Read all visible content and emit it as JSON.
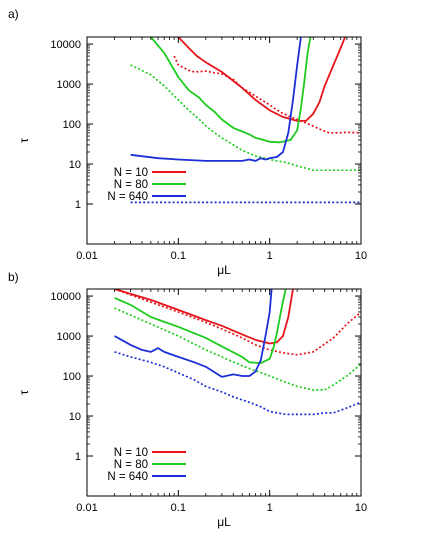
{
  "chart_data": [
    {
      "panel_label": "a)",
      "type": "line",
      "xlabel": "μL",
      "ylabel": "τ",
      "xscale": "log",
      "yscale": "log",
      "xlim": [
        0.01,
        10
      ],
      "ylim": [
        0.1,
        15000
      ],
      "xticks": [
        "0.01",
        "0.1",
        "1",
        "10"
      ],
      "yticks": [
        "1",
        "10",
        "100",
        "1000",
        "10000"
      ],
      "legend_position": "lower-left",
      "series": [
        {
          "name": "N = 10",
          "color": "#e8141b",
          "style": "solid",
          "points": [
            [
              0.1,
              15000
            ],
            [
              0.13,
              8000
            ],
            [
              0.16,
              5000
            ],
            [
              0.2,
              3500
            ],
            [
              0.3,
              2000
            ],
            [
              0.5,
              800
            ],
            [
              0.7,
              400
            ],
            [
              1,
              220
            ],
            [
              1.4,
              150
            ],
            [
              2,
              120
            ],
            [
              2.5,
              120
            ],
            [
              3,
              180
            ],
            [
              3.5,
              350
            ],
            [
              4,
              900
            ],
            [
              5,
              3000
            ],
            [
              6,
              8000
            ],
            [
              6.7,
              15000
            ]
          ]
        },
        {
          "name": "N = 10",
          "color": "#e8141b",
          "style": "dotted",
          "points": [
            [
              0.09,
              5000
            ],
            [
              0.1,
              3000
            ],
            [
              0.13,
              2200
            ],
            [
              0.15,
              2000
            ],
            [
              0.2,
              2100
            ],
            [
              0.25,
              1900
            ],
            [
              0.3,
              1800
            ],
            [
              0.4,
              1300
            ],
            [
              0.5,
              800
            ],
            [
              0.7,
              500
            ],
            [
              1,
              300
            ],
            [
              1.3,
              200
            ],
            [
              1.7,
              150
            ],
            [
              2.2,
              120
            ],
            [
              2.8,
              95
            ],
            [
              3.5,
              75
            ],
            [
              4.5,
              60
            ],
            [
              5.5,
              60
            ],
            [
              7,
              62
            ],
            [
              10,
              60
            ]
          ]
        },
        {
          "name": "N = 80",
          "color": "#1dcc1d",
          "style": "solid",
          "points": [
            [
              0.05,
              15000
            ],
            [
              0.07,
              6000
            ],
            [
              0.1,
              1500
            ],
            [
              0.13,
              700
            ],
            [
              0.17,
              450
            ],
            [
              0.2,
              300
            ],
            [
              0.25,
              200
            ],
            [
              0.3,
              130
            ],
            [
              0.4,
              80
            ],
            [
              0.5,
              65
            ],
            [
              0.6,
              55
            ],
            [
              0.7,
              45
            ],
            [
              0.8,
              42
            ],
            [
              1,
              36
            ],
            [
              1.3,
              35
            ],
            [
              1.7,
              40
            ],
            [
              2,
              70
            ],
            [
              2.2,
              250
            ],
            [
              2.4,
              1200
            ],
            [
              2.6,
              6000
            ],
            [
              2.8,
              15000
            ]
          ]
        },
        {
          "name": "N = 80",
          "color": "#1dcc1d",
          "style": "dotted",
          "points": [
            [
              0.03,
              3000
            ],
            [
              0.05,
              1700
            ],
            [
              0.07,
              900
            ],
            [
              0.1,
              400
            ],
            [
              0.13,
              220
            ],
            [
              0.17,
              130
            ],
            [
              0.2,
              90
            ],
            [
              0.25,
              60
            ],
            [
              0.3,
              45
            ],
            [
              0.4,
              30
            ],
            [
              0.5,
              22
            ],
            [
              0.7,
              16
            ],
            [
              1,
              13
            ],
            [
              1.5,
              11
            ],
            [
              2,
              9
            ],
            [
              3,
              7
            ],
            [
              10,
              7
            ]
          ]
        },
        {
          "name": "N = 640",
          "color": "#1c2fd6",
          "style": "solid",
          "points": [
            [
              0.03,
              17
            ],
            [
              0.06,
              14
            ],
            [
              0.1,
              13
            ],
            [
              0.2,
              12
            ],
            [
              0.35,
              12
            ],
            [
              0.5,
              12
            ],
            [
              0.6,
              13
            ],
            [
              0.7,
              12
            ],
            [
              0.8,
              14
            ],
            [
              0.9,
              13
            ],
            [
              1,
              14
            ],
            [
              1.2,
              15
            ],
            [
              1.4,
              20
            ],
            [
              1.6,
              60
            ],
            [
              1.8,
              400
            ],
            [
              2,
              3000
            ],
            [
              2.2,
              15000
            ]
          ]
        },
        {
          "name": "N = 640",
          "color": "#1c2fd6",
          "style": "dotted",
          "points": [
            [
              0.03,
              1.1
            ],
            [
              0.1,
              1.1
            ],
            [
              1,
              1.1
            ],
            [
              10,
              1.1
            ]
          ]
        }
      ],
      "legend": [
        {
          "label": "N = 10",
          "color": "#e8141b"
        },
        {
          "label": "N = 80",
          "color": "#1dcc1d"
        },
        {
          "label": "N = 640",
          "color": "#1c2fd6"
        }
      ]
    },
    {
      "panel_label": "b)",
      "type": "line",
      "xlabel": "μL",
      "ylabel": "τ",
      "xscale": "log",
      "yscale": "log",
      "xlim": [
        0.01,
        10
      ],
      "ylim": [
        0.1,
        15000
      ],
      "xticks": [
        "0.01",
        "0.1",
        "1",
        "10"
      ],
      "yticks": [
        "1",
        "10",
        "100",
        "1000",
        "10000"
      ],
      "legend_position": "lower-left",
      "series": [
        {
          "name": "N = 10",
          "color": "#e8141b",
          "style": "solid",
          "points": [
            [
              0.02,
              15000
            ],
            [
              0.05,
              8000
            ],
            [
              0.1,
              4500
            ],
            [
              0.2,
              2500
            ],
            [
              0.3,
              1800
            ],
            [
              0.5,
              1100
            ],
            [
              0.7,
              800
            ],
            [
              1,
              650
            ],
            [
              1.2,
              700
            ],
            [
              1.4,
              1000
            ],
            [
              1.6,
              3000
            ],
            [
              1.8,
              15000
            ]
          ]
        },
        {
          "name": "N = 10",
          "color": "#e8141b",
          "style": "dotted",
          "points": [
            [
              0.02,
              15000
            ],
            [
              0.05,
              7000
            ],
            [
              0.1,
              4000
            ],
            [
              0.2,
              2200
            ],
            [
              0.3,
              1500
            ],
            [
              0.5,
              900
            ],
            [
              0.7,
              600
            ],
            [
              1,
              450
            ],
            [
              1.5,
              370
            ],
            [
              2,
              340
            ],
            [
              3,
              400
            ],
            [
              5,
              900
            ],
            [
              7,
              2000
            ],
            [
              10,
              4000
            ]
          ]
        },
        {
          "name": "N = 80",
          "color": "#1dcc1d",
          "style": "solid",
          "points": [
            [
              0.02,
              9000
            ],
            [
              0.03,
              6000
            ],
            [
              0.05,
              3000
            ],
            [
              0.1,
              1700
            ],
            [
              0.2,
              900
            ],
            [
              0.3,
              550
            ],
            [
              0.5,
              300
            ],
            [
              0.6,
              220
            ],
            [
              0.8,
              210
            ],
            [
              1,
              270
            ],
            [
              1.1,
              500
            ],
            [
              1.2,
              1200
            ],
            [
              1.35,
              5000
            ],
            [
              1.5,
              15000
            ]
          ]
        },
        {
          "name": "N = 80",
          "color": "#1dcc1d",
          "style": "dotted",
          "points": [
            [
              0.02,
              5000
            ],
            [
              0.05,
              2000
            ],
            [
              0.1,
              1000
            ],
            [
              0.2,
              450
            ],
            [
              0.3,
              300
            ],
            [
              0.5,
              180
            ],
            [
              1,
              100
            ],
            [
              1.5,
              70
            ],
            [
              2,
              55
            ],
            [
              3,
              45
            ],
            [
              4,
              45
            ],
            [
              5,
              60
            ],
            [
              7,
              100
            ],
            [
              10,
              200
            ]
          ]
        },
        {
          "name": "N = 640",
          "color": "#1c2fd6",
          "style": "solid",
          "points": [
            [
              0.02,
              1000
            ],
            [
              0.03,
              600
            ],
            [
              0.04,
              450
            ],
            [
              0.05,
              400
            ],
            [
              0.06,
              500
            ],
            [
              0.07,
              400
            ],
            [
              0.1,
              300
            ],
            [
              0.15,
              220
            ],
            [
              0.2,
              170
            ],
            [
              0.3,
              95
            ],
            [
              0.4,
              110
            ],
            [
              0.5,
              100
            ],
            [
              0.6,
              100
            ],
            [
              0.7,
              130
            ],
            [
              0.8,
              250
            ],
            [
              0.9,
              1000
            ],
            [
              1,
              4000
            ],
            [
              1.05,
              15000
            ]
          ]
        },
        {
          "name": "N = 640",
          "color": "#1c2fd6",
          "style": "dotted",
          "points": [
            [
              0.02,
              400
            ],
            [
              0.03,
              300
            ],
            [
              0.05,
              220
            ],
            [
              0.07,
              170
            ],
            [
              0.1,
              120
            ],
            [
              0.15,
              80
            ],
            [
              0.2,
              55
            ],
            [
              0.3,
              40
            ],
            [
              0.4,
              30
            ],
            [
              0.6,
              22
            ],
            [
              0.8,
              17
            ],
            [
              1,
              13
            ],
            [
              1.5,
              11
            ],
            [
              2,
              11
            ],
            [
              3,
              11
            ],
            [
              4,
              12
            ],
            [
              5,
              12
            ],
            [
              7,
              16
            ],
            [
              10,
              22
            ]
          ]
        }
      ],
      "legend": [
        {
          "label": "N = 10",
          "color": "#e8141b"
        },
        {
          "label": "N = 80",
          "color": "#1dcc1d"
        },
        {
          "label": "N = 640",
          "color": "#1c2fd6"
        }
      ]
    }
  ]
}
